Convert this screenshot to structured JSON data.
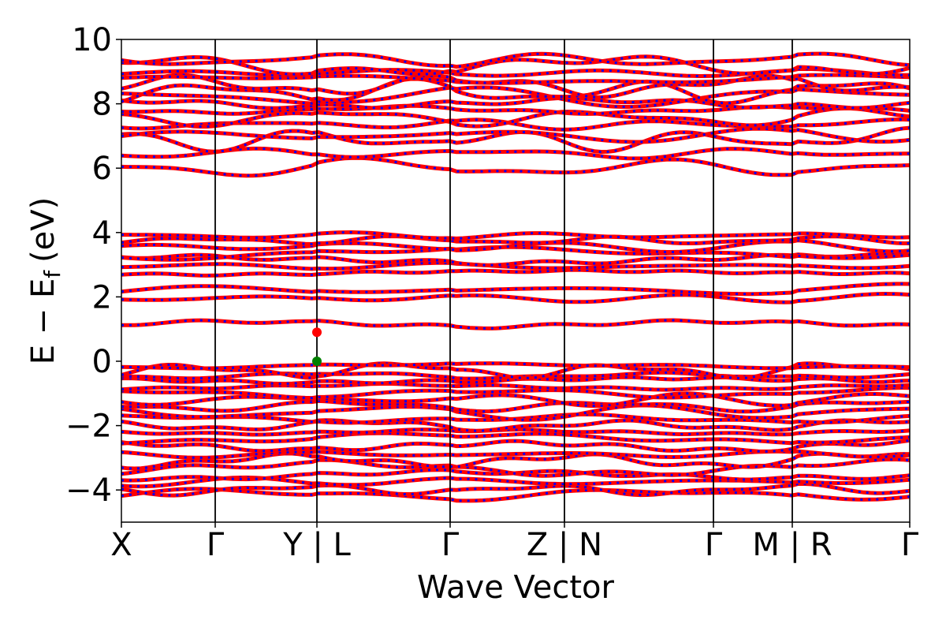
{
  "chart_data": {
    "type": "line",
    "title": "",
    "xlabel": "Wave Vector",
    "ylabel_main": "E − E",
    "ylabel_sub": "f",
    "ylabel_unit": "(eV)",
    "ylim": [
      -5,
      10
    ],
    "yticks": [
      -4,
      -2,
      0,
      2,
      4,
      6,
      8,
      10
    ],
    "ytick_labels": [
      "−4",
      "−2",
      "0",
      "2",
      "4",
      "6",
      "8",
      "10"
    ],
    "xlim": [
      0,
      1
    ],
    "kpoints": [
      {
        "label": "X",
        "x": 0.0
      },
      {
        "label": "Γ",
        "x": 0.119
      },
      {
        "label": "Y | L",
        "x": 0.248
      },
      {
        "label": "Γ",
        "x": 0.417
      },
      {
        "label": "Z | N",
        "x": 0.562
      },
      {
        "label": "Γ",
        "x": 0.751
      },
      {
        "label": "M | R",
        "x": 0.851
      },
      {
        "label": "Γ",
        "x": 1.0
      }
    ],
    "band_colors": {
      "line": "#ff0000",
      "dash": "#0000ff"
    },
    "markers": [
      {
        "name": "cbm",
        "x": 0.248,
        "y": 0.9,
        "color": "#ff0000"
      },
      {
        "name": "vbm",
        "x": 0.248,
        "y": 0.0,
        "color": "#008000"
      }
    ],
    "band_groups": [
      {
        "name": "valence",
        "base": [
          -4.15,
          -4.0,
          -3.75,
          -3.55,
          -3.35,
          -3.1,
          -2.9,
          -2.65,
          -2.4,
          -2.2,
          -2.0,
          -1.8,
          -1.6,
          -1.4,
          -1.2,
          -1.0,
          -0.8,
          -0.6,
          -0.45,
          -0.3,
          -0.15
        ],
        "amp": 0.12
      },
      {
        "name": "conduction-low",
        "base": [
          1.15,
          1.95,
          2.2,
          2.75,
          2.95,
          3.15,
          3.35,
          3.55,
          3.75,
          3.9
        ],
        "amp": 0.1
      },
      {
        "name": "conduction-high",
        "base": [
          6.0,
          6.45,
          6.85,
          7.0,
          7.35,
          7.55,
          7.8,
          8.0,
          8.2,
          8.35,
          8.55,
          8.75,
          8.95,
          9.15,
          9.35
        ],
        "amp": 0.18
      }
    ]
  }
}
